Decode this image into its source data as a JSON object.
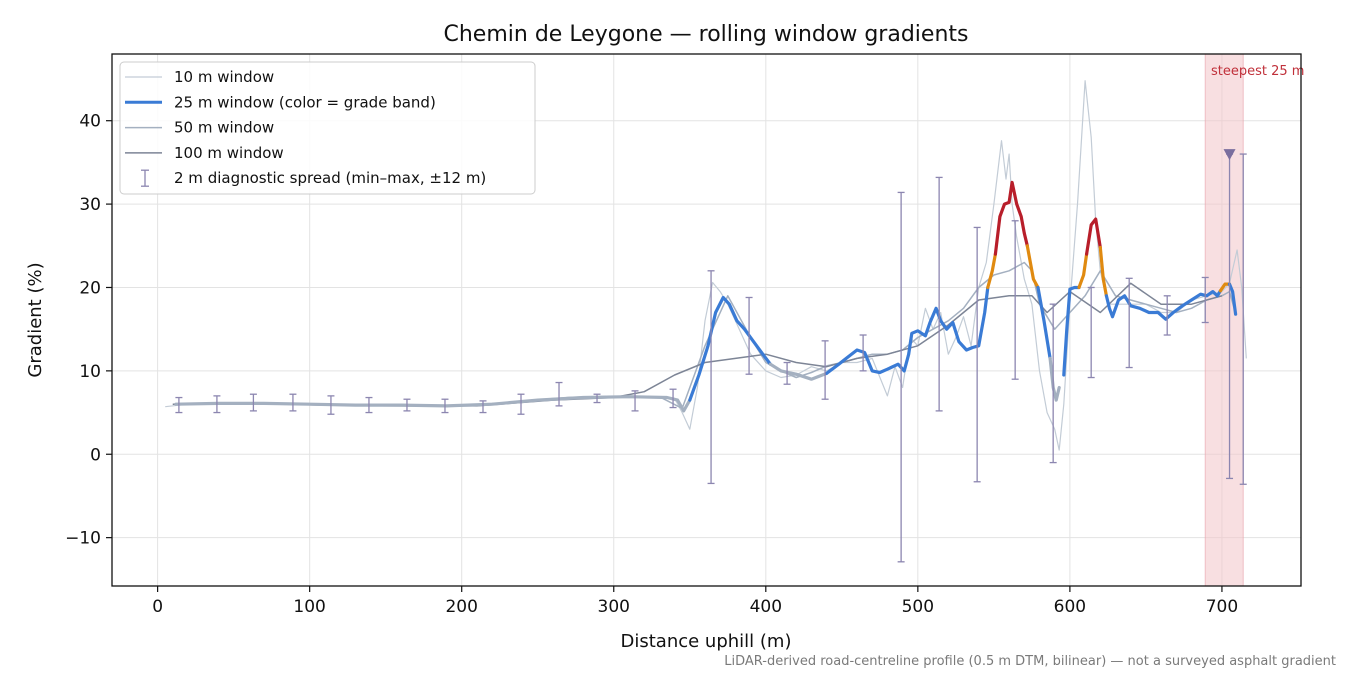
{
  "chart_data": {
    "type": "line",
    "title": "Chemin de Leygone — rolling window gradients",
    "xlabel": "Distance uphill (m)",
    "ylabel": "Gradient (%)",
    "xlim": [
      -30,
      752
    ],
    "ylim": [
      -15.8,
      48.0
    ],
    "xticks": [
      0,
      100,
      200,
      300,
      400,
      500,
      600,
      700
    ],
    "yticks": [
      -10,
      0,
      10,
      20,
      30,
      40
    ],
    "grid": true,
    "legend_position": "upper-left",
    "footnote": "LiDAR-derived road-centreline profile (0.5 m DTM, bilinear) — not a surveyed asphalt gradient",
    "annotation": {
      "text": "steepest 25 m",
      "span_x": [
        689,
        714
      ],
      "marker_x": 705,
      "marker_y": 36,
      "band_color": "#f2c4c8",
      "text_color": "#c0303a"
    },
    "legend": [
      {
        "label": "10 m window",
        "kind": "line",
        "color": "#c3ccd6",
        "width": 1.2
      },
      {
        "label": "25 m window (color = grade band)",
        "kind": "line",
        "color": "#3a7bd5",
        "width": 3
      },
      {
        "label": "50 m window",
        "kind": "line",
        "color": "#a4b0c0",
        "width": 1.5
      },
      {
        "label": "100 m window",
        "kind": "line",
        "color": "#7d8596",
        "width": 1.5
      },
      {
        "label": "2 m diagnostic spread (min–max, ±12 m)",
        "kind": "errorbar",
        "color": "#8c86b0"
      }
    ],
    "grade_band_colors": {
      "moderate": "#3a7bd5",
      "steep": "#e08a10",
      "very_steep": "#b81e2a",
      "low": "#a4b0c0"
    },
    "series": [
      {
        "name": "10 m window",
        "color": "#c3ccd6",
        "width": 1.2,
        "x": [
          5,
          20,
          40,
          60,
          80,
          100,
          120,
          140,
          160,
          180,
          200,
          220,
          240,
          260,
          280,
          300,
          320,
          340,
          345,
          350,
          355,
          360,
          365,
          370,
          375,
          380,
          390,
          400,
          410,
          420,
          430,
          440,
          450,
          460,
          470,
          480,
          485,
          490,
          495,
          500,
          505,
          510,
          515,
          520,
          525,
          530,
          535,
          540,
          545,
          550,
          555,
          558,
          560,
          562,
          565,
          570,
          575,
          580,
          585,
          590,
          593,
          596,
          600,
          605,
          610,
          614,
          617,
          620,
          625,
          630,
          640,
          650,
          660,
          670,
          680,
          690,
          700,
          705,
          710,
          713,
          716
        ],
        "y": [
          5.7,
          6.0,
          6.1,
          6.0,
          6.1,
          6.0,
          5.9,
          5.9,
          6.0,
          5.8,
          5.9,
          6.1,
          6.3,
          6.7,
          6.9,
          6.9,
          6.9,
          6.7,
          5.0,
          3.0,
          8.0,
          16.0,
          20.6,
          19.5,
          18.0,
          16.0,
          12.0,
          10.0,
          9.2,
          9.5,
          10.5,
          10.0,
          11.0,
          11.0,
          11.5,
          7.0,
          10.5,
          8.0,
          14.0,
          13.0,
          17.5,
          15.0,
          17.0,
          12.0,
          14.0,
          16.5,
          13.0,
          20.0,
          23.0,
          30.0,
          37.6,
          33.0,
          36.0,
          30.0,
          26.0,
          21.0,
          18.0,
          10.0,
          5.0,
          3.0,
          0.5,
          6.0,
          18.0,
          30.0,
          44.8,
          38.0,
          28.0,
          22.0,
          18.0,
          18.0,
          18.0,
          18.0,
          17.0,
          17.0,
          18.5,
          19.0,
          19.5,
          20.5,
          24.5,
          20.0,
          11.5
        ]
      },
      {
        "name": "50 m window",
        "color": "#a4b0c0",
        "width": 1.5,
        "x": [
          10,
          40,
          80,
          120,
          160,
          200,
          240,
          270,
          300,
          330,
          345,
          360,
          375,
          390,
          400,
          410,
          420,
          430,
          440,
          450,
          460,
          470,
          480,
          490,
          500,
          510,
          520,
          530,
          540,
          550,
          560,
          570,
          575,
          580,
          590,
          600,
          610,
          620,
          630,
          640,
          650,
          660,
          670,
          680,
          690,
          700,
          705,
          708
        ],
        "y": [
          6.0,
          6.1,
          6.0,
          5.9,
          5.9,
          5.8,
          6.3,
          6.8,
          6.9,
          6.9,
          5.5,
          13.0,
          19.0,
          14.0,
          11.0,
          10.0,
          9.2,
          9.8,
          10.6,
          11.0,
          11.5,
          12.0,
          12.0,
          12.5,
          14.0,
          15.0,
          16.0,
          17.5,
          20.0,
          21.5,
          22.0,
          23.0,
          22.0,
          18.0,
          15.0,
          17.0,
          19.0,
          22.0,
          19.0,
          18.5,
          18.0,
          17.5,
          17.0,
          17.5,
          18.5,
          19.0,
          19.5,
          17.5
        ]
      },
      {
        "name": "100 m window",
        "color": "#7d8596",
        "width": 1.5,
        "x": [
          10,
          60,
          110,
          160,
          210,
          260,
          300,
          320,
          340,
          360,
          380,
          400,
          420,
          440,
          460,
          480,
          500,
          520,
          540,
          560,
          575,
          585,
          600,
          620,
          640,
          660,
          680,
          700
        ],
        "y": [
          6.0,
          6.1,
          5.9,
          5.8,
          5.8,
          6.5,
          6.8,
          7.5,
          9.5,
          11.0,
          11.5,
          12.0,
          11.0,
          10.5,
          11.5,
          12.0,
          13.0,
          15.5,
          18.5,
          19.0,
          19.0,
          17.0,
          19.5,
          17.0,
          20.5,
          18.0,
          18.0,
          19.0
        ]
      },
      {
        "name": "25 m window (color = grade band)",
        "kind": "segmented",
        "segments": [
          {
            "band": "low",
            "color": "#a4b0c0",
            "x": [
              12,
              40,
              70,
              100,
              130,
              160,
              190,
              220,
              250,
              280,
              310,
              335,
              342,
              346,
              350
            ],
            "y": [
              6.0,
              6.1,
              6.1,
              6.0,
              5.9,
              5.9,
              5.8,
              6.0,
              6.5,
              6.8,
              6.9,
              6.8,
              6.5,
              5.2,
              6.5
            ]
          },
          {
            "band": "moderate",
            "color": "#3a7bd5",
            "x": [
              350,
              356,
              362,
              367,
              372,
              376,
              381,
              386,
              392,
              398,
              403
            ],
            "y": [
              6.5,
              9.5,
              13.0,
              17.0,
              18.8,
              18.0,
              16.0,
              15.0,
              13.5,
              12.0,
              10.8
            ]
          },
          {
            "band": "low",
            "color": "#a4b0c0",
            "x": [
              403,
              410,
              420,
              430,
              440
            ],
            "y": [
              10.8,
              10.0,
              9.6,
              9.0,
              9.7
            ]
          },
          {
            "band": "moderate",
            "color": "#3a7bd5",
            "x": [
              440,
              448,
              455,
              460,
              465,
              470,
              475,
              480,
              487,
              491,
              494,
              496,
              500,
              505,
              508,
              512,
              515,
              519,
              523,
              527,
              532,
              536,
              540,
              544,
              546
            ],
            "y": [
              9.7,
              10.8,
              11.8,
              12.5,
              12.2,
              10.0,
              9.8,
              10.2,
              10.8,
              10.0,
              12.0,
              14.5,
              14.8,
              14.2,
              15.8,
              17.5,
              16.0,
              15.0,
              15.8,
              13.5,
              12.5,
              12.8,
              13.0,
              17.0,
              20.0
            ]
          },
          {
            "band": "steep",
            "color": "#e08a10",
            "x": [
              546,
              549,
              551
            ],
            "y": [
              20.0,
              22.0,
              24.0
            ]
          },
          {
            "band": "very_steep",
            "color": "#b81e2a",
            "x": [
              551,
              554,
              557,
              560,
              562,
              565,
              568,
              570,
              572
            ],
            "y": [
              24.0,
              28.5,
              30.0,
              30.2,
              32.6,
              30.0,
              28.5,
              26.5,
              25.0
            ]
          },
          {
            "band": "steep",
            "color": "#e08a10",
            "x": [
              572,
              576,
              579
            ],
            "y": [
              25.0,
              21.0,
              20.0
            ]
          },
          {
            "band": "moderate",
            "color": "#3a7bd5",
            "x": [
              579,
              583,
              587
            ],
            "y": [
              20.0,
              16.0,
              11.5
            ]
          },
          {
            "band": "low",
            "color": "#a4b0c0",
            "x": [
              587,
              589,
              591,
              593
            ],
            "y": [
              11.5,
              8.0,
              6.5,
              8.0
            ]
          },
          {
            "band": "moderate",
            "color": "#3a7bd5",
            "x": [
              596,
              598,
              600,
              603,
              606
            ],
            "y": [
              9.5,
              15.0,
              19.8,
              20.0,
              20.0
            ]
          },
          {
            "band": "steep",
            "color": "#e08a10",
            "x": [
              606,
              609,
              611
            ],
            "y": [
              20.0,
              21.5,
              24.0
            ]
          },
          {
            "band": "very_steep",
            "color": "#b81e2a",
            "x": [
              611,
              614,
              617,
              620
            ],
            "y": [
              24.0,
              27.5,
              28.2,
              24.8
            ]
          },
          {
            "band": "steep",
            "color": "#e08a10",
            "x": [
              620,
              622,
              624
            ],
            "y": [
              24.8,
              21.0,
              19.0
            ]
          },
          {
            "band": "moderate",
            "color": "#3a7bd5",
            "x": [
              624,
              626,
              628,
              632,
              636,
              640,
              646,
              652,
              658,
              663,
              668,
              674,
              680,
              686,
              690,
              694,
              697,
              699
            ],
            "y": [
              19.0,
              17.5,
              16.5,
              18.5,
              19.0,
              17.8,
              17.5,
              17.0,
              17.0,
              16.2,
              17.0,
              17.8,
              18.5,
              19.2,
              19.0,
              19.5,
              19.0,
              19.6
            ]
          },
          {
            "band": "steep",
            "color": "#e08a10",
            "x": [
              699,
              702,
              705
            ],
            "y": [
              19.6,
              20.4,
              20.4
            ]
          },
          {
            "band": "moderate",
            "color": "#3a7bd5",
            "x": [
              705,
              707,
              709
            ],
            "y": [
              20.4,
              19.5,
              16.8
            ]
          }
        ]
      },
      {
        "name": "2 m diagnostic spread (min–max, ±12 m)",
        "kind": "errorbar",
        "color": "#8c86b0",
        "points": [
          {
            "x": 14,
            "lo": 5.0,
            "hi": 6.8
          },
          {
            "x": 39,
            "lo": 5.0,
            "hi": 7.0
          },
          {
            "x": 63,
            "lo": 5.2,
            "hi": 7.2
          },
          {
            "x": 89,
            "lo": 5.2,
            "hi": 7.2
          },
          {
            "x": 114,
            "lo": 4.8,
            "hi": 7.0
          },
          {
            "x": 139,
            "lo": 5.0,
            "hi": 6.8
          },
          {
            "x": 164,
            "lo": 5.2,
            "hi": 6.6
          },
          {
            "x": 189,
            "lo": 5.0,
            "hi": 6.6
          },
          {
            "x": 214,
            "lo": 5.0,
            "hi": 6.4
          },
          {
            "x": 239,
            "lo": 4.8,
            "hi": 7.2
          },
          {
            "x": 264,
            "lo": 5.8,
            "hi": 8.6
          },
          {
            "x": 289,
            "lo": 6.2,
            "hi": 7.2
          },
          {
            "x": 314,
            "lo": 5.2,
            "hi": 7.6
          },
          {
            "x": 339,
            "lo": 5.6,
            "hi": 7.8
          },
          {
            "x": 364,
            "lo": -3.5,
            "hi": 22.0
          },
          {
            "x": 389,
            "lo": 9.6,
            "hi": 18.8
          },
          {
            "x": 414,
            "lo": 8.4,
            "hi": 11.0
          },
          {
            "x": 439,
            "lo": 6.6,
            "hi": 13.6
          },
          {
            "x": 464,
            "lo": 10.0,
            "hi": 14.3
          },
          {
            "x": 489,
            "lo": -12.9,
            "hi": 31.4
          },
          {
            "x": 514,
            "lo": 5.2,
            "hi": 33.2
          },
          {
            "x": 539,
            "lo": -3.3,
            "hi": 27.2
          },
          {
            "x": 564,
            "lo": 9.0,
            "hi": 28.0
          },
          {
            "x": 589,
            "lo": -1.0,
            "hi": 18.0
          },
          {
            "x": 614,
            "lo": 9.2,
            "hi": 20.0
          },
          {
            "x": 639,
            "lo": 10.4,
            "hi": 21.1
          },
          {
            "x": 664,
            "lo": 14.3,
            "hi": 19.0
          },
          {
            "x": 689,
            "lo": 15.8,
            "hi": 21.2
          },
          {
            "x": 705,
            "lo": -2.9,
            "hi": 36.0
          },
          {
            "x": 714,
            "lo": -3.6,
            "hi": 36.0
          }
        ]
      }
    ]
  }
}
